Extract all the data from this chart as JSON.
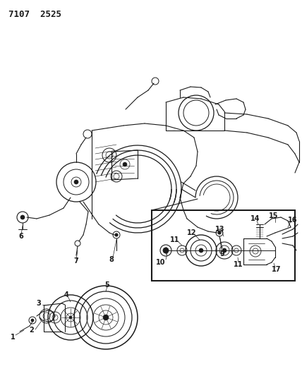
{
  "bg_color": "#ffffff",
  "title_text": "7107  2525",
  "line_color": "#1a1a1a",
  "fig_width": 4.28,
  "fig_height": 5.33,
  "dpi": 100,
  "label_fontsize": 7.0
}
